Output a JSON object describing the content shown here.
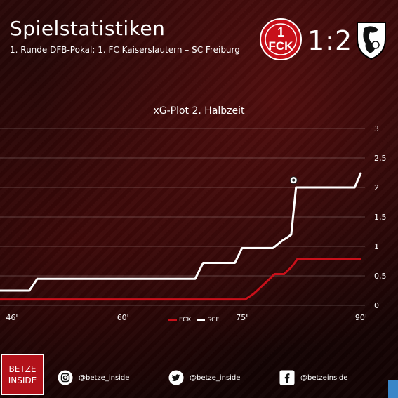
{
  "header": {
    "title": "Spielstatistiken",
    "subtitle": "1. Runde DFB-Pokal: 1. FC Kaiserslautern – SC Freiburg",
    "score": "1:2",
    "home_logo_text": "1FCK"
  },
  "chart_data": {
    "type": "line",
    "title": "xG-Plot 2. Halbzeit",
    "xlabel": "",
    "ylabel": "",
    "xlim": [
      44.5,
      90.5
    ],
    "ylim": [
      0,
      3
    ],
    "x_ticks": [
      46,
      60,
      75,
      90
    ],
    "x_tick_labels": [
      "46'",
      "60'",
      "75'",
      "90'"
    ],
    "y_ticks": [
      0,
      0.5,
      1,
      1.5,
      2,
      2.5,
      3
    ],
    "y_tick_labels": [
      "0",
      "0,5",
      "1",
      "1,5",
      "2",
      "2,5",
      "3"
    ],
    "grid": true,
    "legend": "bottom-center",
    "series": [
      {
        "name": "FCK",
        "color": "#c8101a",
        "step": true,
        "points": [
          [
            44.5,
            0.1
          ],
          [
            75.4,
            0.1
          ],
          [
            76.5,
            0.2
          ],
          [
            77.3,
            0.3
          ],
          [
            78.1,
            0.4
          ],
          [
            79.1,
            0.53
          ],
          [
            80.3,
            0.53
          ],
          [
            81.3,
            0.66
          ],
          [
            82,
            0.79
          ],
          [
            90,
            0.79
          ]
        ]
      },
      {
        "name": "SCF",
        "color": "#ffffff",
        "step": true,
        "points": [
          [
            44.5,
            0.25
          ],
          [
            48.2,
            0.25
          ],
          [
            49.2,
            0.45
          ],
          [
            69.1,
            0.45
          ],
          [
            70.1,
            0.72
          ],
          [
            74.1,
            0.72
          ],
          [
            75,
            0.97
          ],
          [
            78.9,
            0.97
          ],
          [
            80.1,
            1.1
          ],
          [
            80.8,
            1.16
          ],
          [
            81.2,
            1.2
          ],
          [
            81.8,
            2.0
          ],
          [
            89.2,
            2.0
          ],
          [
            90,
            2.25
          ]
        ]
      }
    ],
    "annotations": [
      {
        "type": "goal-ball",
        "series": "SCF",
        "x": 81.5,
        "y": 2.1
      }
    ]
  },
  "footer": {
    "brand_line1": "BETZE",
    "brand_line2": "INSIDE",
    "instagram": "@betze_inside",
    "twitter": "@betze_inside",
    "facebook": "@betzeinside"
  },
  "colors": {
    "brand_red": "#b3121b",
    "fck_red": "#c8101a",
    "scf_white": "#ffffff"
  }
}
